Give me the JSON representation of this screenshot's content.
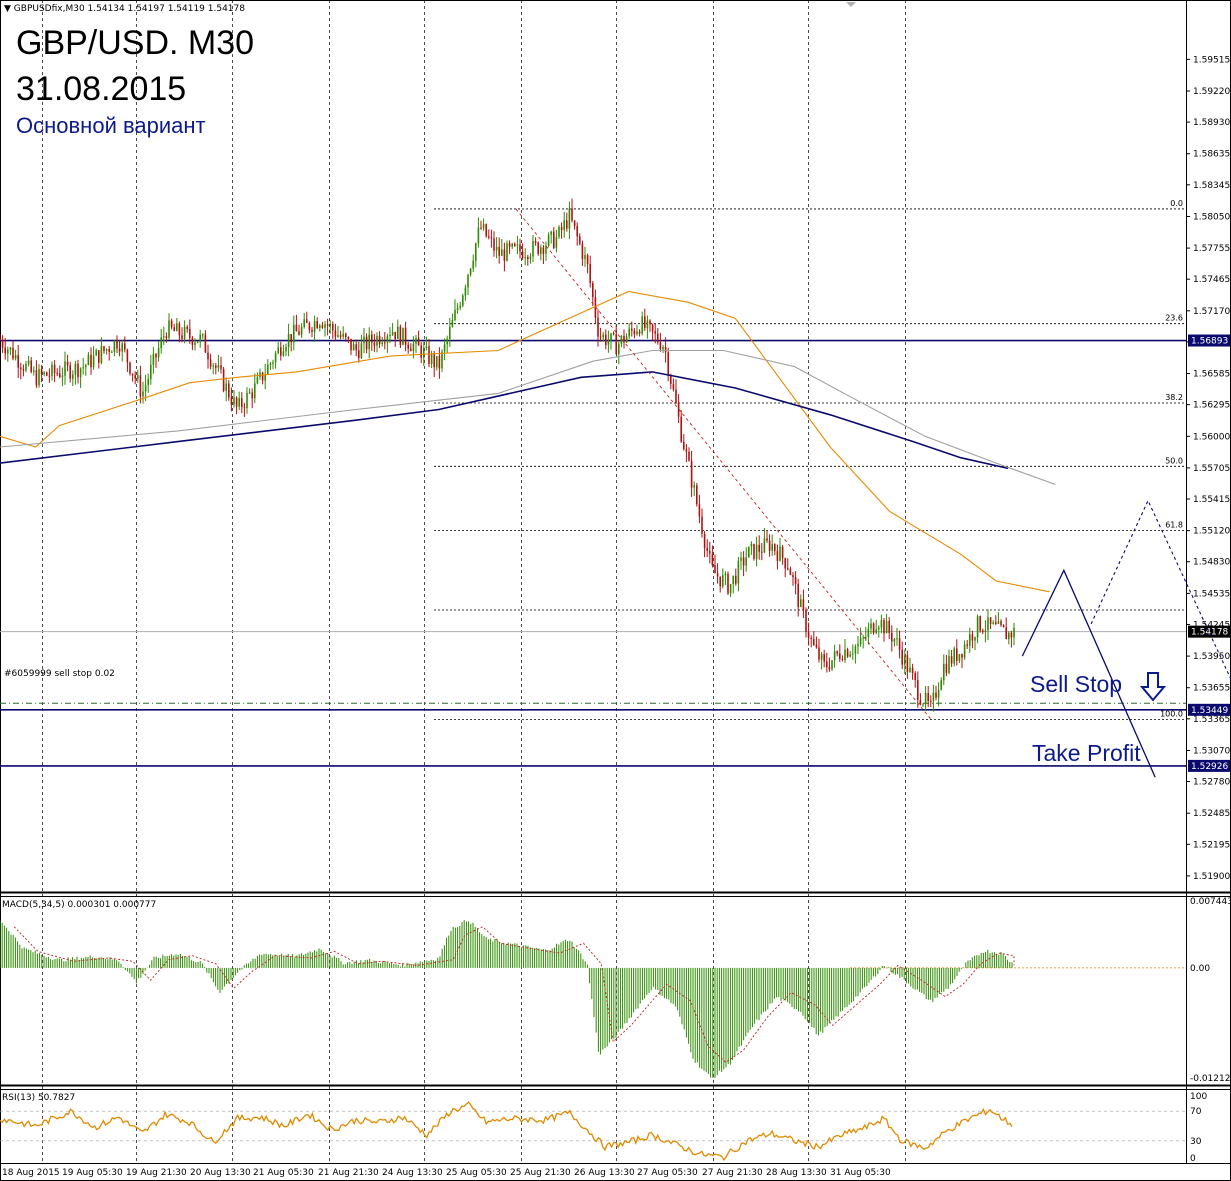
{
  "header": {
    "symbol_line": "GBPUSDfix,M30  1.54134 1.54197 1.54119 1.54178",
    "title": "GBP/USD. M30",
    "date": "31.08.2015",
    "subtitle": "Основной вариант"
  },
  "annotations": {
    "sell_stop": "Sell Stop",
    "take_profit": "Take Profit",
    "order_label": "#6059999 sell stop 0.02"
  },
  "colors": {
    "bull": "#2e8b00",
    "bear": "#b01010",
    "ma_orange": "#e88a00",
    "ma_navy": "#0a0a6e",
    "ma_gray": "#a0a0a0",
    "levels": "#0a0a6e",
    "rsi": "#e08a00"
  },
  "chart_data": [
    {
      "type": "candlestick",
      "title": "GBP/USD. M30",
      "ylim": [
        1.5175,
        1.6005
      ],
      "y_ticks": [
        "1.59515",
        "1.59220",
        "1.58930",
        "1.58635",
        "1.58345",
        "1.58050",
        "1.57755",
        "1.57465",
        "1.57170",
        "1.56880",
        "1.56585",
        "1.56295",
        "1.56000",
        "1.55705",
        "1.55415",
        "1.55120",
        "1.54830",
        "1.54535",
        "1.54245",
        "1.53950",
        "1.53655",
        "1.53365",
        "1.53070",
        "1.52780",
        "1.52485",
        "1.52195",
        "1.51900"
      ],
      "x_ticks": [
        "18 Aug 2015",
        "19 Aug 05:30",
        "19 Aug 21:30",
        "20 Aug 13:30",
        "21 Aug 05:30",
        "21 Aug 21:30",
        "24 Aug 13:30",
        "25 Aug 05:30",
        "25 Aug 21:30",
        "26 Aug 13:30",
        "27 Aug 05:30",
        "27 Aug 21:30",
        "28 Aug 13:30",
        "31 Aug 05:30"
      ],
      "last_price": "1.54178",
      "price_path": [
        {
          "t": 0,
          "p": 1.569
        },
        {
          "t": 0.03,
          "p": 1.5655
        },
        {
          "t": 0.07,
          "p": 1.5665
        },
        {
          "t": 0.1,
          "p": 1.569
        },
        {
          "t": 0.12,
          "p": 1.564
        },
        {
          "t": 0.14,
          "p": 1.57
        },
        {
          "t": 0.17,
          "p": 1.569
        },
        {
          "t": 0.2,
          "p": 1.5625
        },
        {
          "t": 0.215,
          "p": 1.5645
        },
        {
          "t": 0.24,
          "p": 1.569
        },
        {
          "t": 0.27,
          "p": 1.571
        },
        {
          "t": 0.3,
          "p": 1.568
        },
        {
          "t": 0.33,
          "p": 1.57
        },
        {
          "t": 0.355,
          "p": 1.568
        },
        {
          "t": 0.37,
          "p": 1.5665
        },
        {
          "t": 0.39,
          "p": 1.5735
        },
        {
          "t": 0.405,
          "p": 1.5795
        },
        {
          "t": 0.42,
          "p": 1.577
        },
        {
          "t": 0.45,
          "p": 1.5775
        },
        {
          "t": 0.47,
          "p": 1.5785
        },
        {
          "t": 0.48,
          "p": 1.5805
        },
        {
          "t": 0.495,
          "p": 1.576
        },
        {
          "t": 0.505,
          "p": 1.5695
        },
        {
          "t": 0.52,
          "p": 1.5685
        },
        {
          "t": 0.54,
          "p": 1.5705
        },
        {
          "t": 0.56,
          "p": 1.5685
        },
        {
          "t": 0.575,
          "p": 1.56
        },
        {
          "t": 0.59,
          "p": 1.5525
        },
        {
          "t": 0.6,
          "p": 1.5475
        },
        {
          "t": 0.615,
          "p": 1.546
        },
        {
          "t": 0.63,
          "p": 1.549
        },
        {
          "t": 0.65,
          "p": 1.55
        },
        {
          "t": 0.665,
          "p": 1.548
        },
        {
          "t": 0.675,
          "p": 1.544
        },
        {
          "t": 0.685,
          "p": 1.5405
        },
        {
          "t": 0.695,
          "p": 1.5385
        },
        {
          "t": 0.71,
          "p": 1.54
        },
        {
          "t": 0.725,
          "p": 1.5405
        },
        {
          "t": 0.74,
          "p": 1.543
        },
        {
          "t": 0.755,
          "p": 1.541
        },
        {
          "t": 0.765,
          "p": 1.5385
        },
        {
          "t": 0.775,
          "p": 1.536
        },
        {
          "t": 0.785,
          "p": 1.5345
        },
        {
          "t": 0.795,
          "p": 1.5385
        },
        {
          "t": 0.81,
          "p": 1.54
        },
        {
          "t": 0.825,
          "p": 1.5425
        },
        {
          "t": 0.84,
          "p": 1.542
        },
        {
          "t": 0.85,
          "p": 1.5415
        },
        {
          "t": 0.855,
          "p": 1.54178
        }
      ],
      "moving_averages": [
        {
          "color": "orange",
          "points": [
            {
              "t": 0,
              "p": 1.56
            },
            {
              "t": 0.03,
              "p": 1.559
            },
            {
              "t": 0.05,
              "p": 1.561
            },
            {
              "t": 0.12,
              "p": 1.5635
            },
            {
              "t": 0.16,
              "p": 1.565
            },
            {
              "t": 0.2,
              "p": 1.5655
            },
            {
              "t": 0.25,
              "p": 1.566
            },
            {
              "t": 0.33,
              "p": 1.5675
            },
            {
              "t": 0.42,
              "p": 1.568
            },
            {
              "t": 0.48,
              "p": 1.571
            },
            {
              "t": 0.53,
              "p": 1.5735
            },
            {
              "t": 0.58,
              "p": 1.5725
            },
            {
              "t": 0.62,
              "p": 1.571
            },
            {
              "t": 0.66,
              "p": 1.565
            },
            {
              "t": 0.7,
              "p": 1.559
            },
            {
              "t": 0.75,
              "p": 1.553
            },
            {
              "t": 0.78,
              "p": 1.551
            },
            {
              "t": 0.81,
              "p": 1.549
            },
            {
              "t": 0.84,
              "p": 1.5465
            },
            {
              "t": 0.885,
              "p": 1.5455
            }
          ]
        },
        {
          "color": "navy",
          "points": [
            {
              "t": 0,
              "p": 1.5575
            },
            {
              "t": 0.15,
              "p": 1.5595
            },
            {
              "t": 0.3,
              "p": 1.5615
            },
            {
              "t": 0.37,
              "p": 1.5625
            },
            {
              "t": 0.43,
              "p": 1.564
            },
            {
              "t": 0.49,
              "p": 1.5655
            },
            {
              "t": 0.55,
              "p": 1.566
            },
            {
              "t": 0.62,
              "p": 1.5645
            },
            {
              "t": 0.7,
              "p": 1.562
            },
            {
              "t": 0.77,
              "p": 1.5595
            },
            {
              "t": 0.81,
              "p": 1.558
            },
            {
              "t": 0.85,
              "p": 1.557
            }
          ]
        },
        {
          "color": "gray",
          "points": [
            {
              "t": 0,
              "p": 1.559
            },
            {
              "t": 0.15,
              "p": 1.5605
            },
            {
              "t": 0.3,
              "p": 1.5625
            },
            {
              "t": 0.42,
              "p": 1.564
            },
            {
              "t": 0.5,
              "p": 1.567
            },
            {
              "t": 0.55,
              "p": 1.568
            },
            {
              "t": 0.61,
              "p": 1.568
            },
            {
              "t": 0.67,
              "p": 1.5665
            },
            {
              "t": 0.72,
              "p": 1.5635
            },
            {
              "t": 0.78,
              "p": 1.56
            },
            {
              "t": 0.84,
              "p": 1.5575
            },
            {
              "t": 0.89,
              "p": 1.5555
            }
          ]
        }
      ],
      "fibonacci": {
        "levels": [
          {
            "label": "0.0",
            "price": 1.5812
          },
          {
            "label": "23.6",
            "price": 1.5705
          },
          {
            "label": "38.2",
            "price": 1.5631
          },
          {
            "label": "50.0",
            "price": 1.5572
          },
          {
            "label": "61.8",
            "price": 1.5512
          },
          {
            "label": "",
            "price": 1.5438
          },
          {
            "label": "100.0",
            "price": 1.5336
          }
        ]
      },
      "horizontal_levels": [
        {
          "label": "1.56893",
          "price": 1.56893,
          "style": "solid"
        },
        {
          "label": "1.54178",
          "price": 1.54178,
          "style": "gray"
        },
        {
          "label": "",
          "price": 1.5351,
          "style": "dashdot"
        },
        {
          "label": "1.53449",
          "price": 1.53449,
          "style": "solid"
        },
        {
          "label": "1.52926",
          "price": 1.52926,
          "style": "solid"
        }
      ],
      "forecast_solid": [
        {
          "t": 0.862,
          "p": 1.5395
        },
        {
          "t": 0.897,
          "p": 1.5475
        },
        {
          "t": 0.974,
          "p": 1.5282
        }
      ],
      "forecast_dotted": [
        {
          "t": 0.92,
          "p": 1.5425
        },
        {
          "t": 0.968,
          "p": 1.554
        },
        {
          "t": 1.075,
          "p": 1.5285
        }
      ],
      "trendline_dashed": [
        {
          "t": 0.435,
          "p": 1.5812
        },
        {
          "t": 0.785,
          "p": 1.5336
        }
      ]
    },
    {
      "type": "histogram",
      "title": "MACD(5,34,5) 0.000301 0.000777",
      "y_ticks": [
        "0.007443",
        "0.00",
        "-0.012124"
      ],
      "ylim": [
        -0.012124,
        0.007443
      ],
      "values_path": [
        {
          "t": 0,
          "v": 0.005
        },
        {
          "t": 0.02,
          "v": 0.002
        },
        {
          "t": 0.05,
          "v": 0.0008
        },
        {
          "t": 0.08,
          "v": 0.0012
        },
        {
          "t": 0.1,
          "v": 0.0008
        },
        {
          "t": 0.115,
          "v": -0.0015
        },
        {
          "t": 0.13,
          "v": 0.001
        },
        {
          "t": 0.15,
          "v": 0.0015
        },
        {
          "t": 0.17,
          "v": 0.0005
        },
        {
          "t": 0.185,
          "v": -0.0025
        },
        {
          "t": 0.2,
          "v": -0.0005
        },
        {
          "t": 0.22,
          "v": 0.0015
        },
        {
          "t": 0.25,
          "v": 0.0012
        },
        {
          "t": 0.27,
          "v": 0.002
        },
        {
          "t": 0.29,
          "v": 0.0005
        },
        {
          "t": 0.31,
          "v": 0.0008
        },
        {
          "t": 0.34,
          "v": 0.0003
        },
        {
          "t": 0.37,
          "v": 0.001
        },
        {
          "t": 0.38,
          "v": 0.004
        },
        {
          "t": 0.395,
          "v": 0.005
        },
        {
          "t": 0.41,
          "v": 0.003
        },
        {
          "t": 0.43,
          "v": 0.0025
        },
        {
          "t": 0.46,
          "v": 0.0018
        },
        {
          "t": 0.48,
          "v": 0.003
        },
        {
          "t": 0.495,
          "v": 0.0005
        },
        {
          "t": 0.505,
          "v": -0.009
        },
        {
          "t": 0.52,
          "v": -0.007
        },
        {
          "t": 0.55,
          "v": -0.002
        },
        {
          "t": 0.57,
          "v": -0.004
        },
        {
          "t": 0.585,
          "v": -0.0095
        },
        {
          "t": 0.6,
          "v": -0.0115
        },
        {
          "t": 0.615,
          "v": -0.01
        },
        {
          "t": 0.635,
          "v": -0.006
        },
        {
          "t": 0.655,
          "v": -0.003
        },
        {
          "t": 0.675,
          "v": -0.0045
        },
        {
          "t": 0.69,
          "v": -0.007
        },
        {
          "t": 0.71,
          "v": -0.0045
        },
        {
          "t": 0.73,
          "v": -0.002
        },
        {
          "t": 0.745,
          "v": 0.0003
        },
        {
          "t": 0.765,
          "v": -0.0015
        },
        {
          "t": 0.785,
          "v": -0.0035
        },
        {
          "t": 0.8,
          "v": -0.002
        },
        {
          "t": 0.815,
          "v": 0.0005
        },
        {
          "t": 0.83,
          "v": 0.0018
        },
        {
          "t": 0.845,
          "v": 0.0015
        },
        {
          "t": 0.855,
          "v": 0.0003
        }
      ]
    },
    {
      "type": "line",
      "title": "RSI(13) 50.7827",
      "y_ticks": [
        "100",
        "70",
        "30",
        "0"
      ],
      "ylim": [
        0,
        100
      ],
      "values_path": [
        {
          "t": 0,
          "v": 60
        },
        {
          "t": 0.03,
          "v": 50
        },
        {
          "t": 0.06,
          "v": 70
        },
        {
          "t": 0.08,
          "v": 48
        },
        {
          "t": 0.1,
          "v": 62
        },
        {
          "t": 0.12,
          "v": 40
        },
        {
          "t": 0.14,
          "v": 66
        },
        {
          "t": 0.16,
          "v": 55
        },
        {
          "t": 0.18,
          "v": 28
        },
        {
          "t": 0.2,
          "v": 60
        },
        {
          "t": 0.22,
          "v": 62
        },
        {
          "t": 0.24,
          "v": 50
        },
        {
          "t": 0.26,
          "v": 66
        },
        {
          "t": 0.28,
          "v": 45
        },
        {
          "t": 0.3,
          "v": 58
        },
        {
          "t": 0.32,
          "v": 55
        },
        {
          "t": 0.34,
          "v": 62
        },
        {
          "t": 0.36,
          "v": 38
        },
        {
          "t": 0.38,
          "v": 70
        },
        {
          "t": 0.395,
          "v": 78
        },
        {
          "t": 0.41,
          "v": 55
        },
        {
          "t": 0.43,
          "v": 60
        },
        {
          "t": 0.46,
          "v": 58
        },
        {
          "t": 0.48,
          "v": 68
        },
        {
          "t": 0.495,
          "v": 45
        },
        {
          "t": 0.51,
          "v": 22
        },
        {
          "t": 0.53,
          "v": 28
        },
        {
          "t": 0.55,
          "v": 38
        },
        {
          "t": 0.57,
          "v": 25
        },
        {
          "t": 0.59,
          "v": 12
        },
        {
          "t": 0.61,
          "v": 8
        },
        {
          "t": 0.63,
          "v": 30
        },
        {
          "t": 0.65,
          "v": 40
        },
        {
          "t": 0.67,
          "v": 30
        },
        {
          "t": 0.69,
          "v": 22
        },
        {
          "t": 0.71,
          "v": 38
        },
        {
          "t": 0.73,
          "v": 48
        },
        {
          "t": 0.745,
          "v": 60
        },
        {
          "t": 0.76,
          "v": 30
        },
        {
          "t": 0.78,
          "v": 20
        },
        {
          "t": 0.8,
          "v": 45
        },
        {
          "t": 0.82,
          "v": 62
        },
        {
          "t": 0.835,
          "v": 72
        },
        {
          "t": 0.845,
          "v": 60
        },
        {
          "t": 0.855,
          "v": 50.78
        }
      ]
    }
  ]
}
